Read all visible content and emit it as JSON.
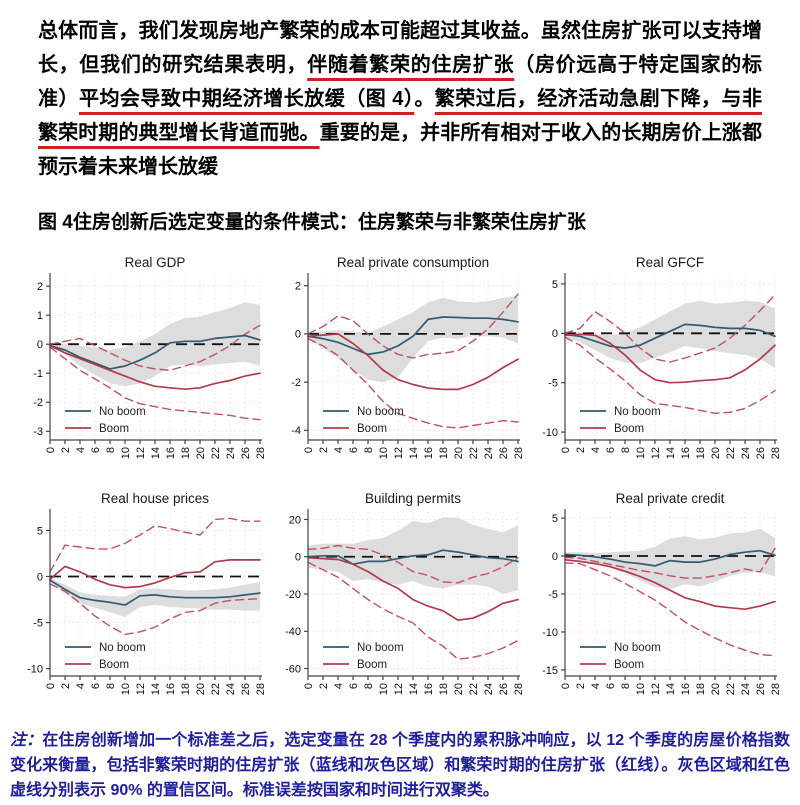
{
  "paragraph": {
    "segments": [
      {
        "text": "总体而言，我们发现房地产繁荣的成本可能超过其收益。虽然住房扩张可以支持增长，但我们的研究结果表明，",
        "underline": false
      },
      {
        "text": "伴随着繁荣的住房扩张",
        "underline": true
      },
      {
        "text": "（房价远高于特定国家的标准）",
        "underline": false
      },
      {
        "text": "平均会导致中期经济增长放缓（图 4）",
        "underline": true
      },
      {
        "text": "。",
        "underline": false
      },
      {
        "text": "繁荣过后，经济活动急剧下降，与非繁荣时期的典型增长背道而驰。",
        "underline": true
      },
      {
        "text": "重要的是，并非所有相对于收入的长期房价上涨都预示着未来增长放缓",
        "underline": false
      }
    ]
  },
  "figure_caption": {
    "prefix": "图 4",
    "text": "住房创新后选定变量的条件模式：住房繁荣与非繁荣住房扩张"
  },
  "legend": {
    "no_boom": "No boom",
    "boom": "Boom"
  },
  "colors": {
    "no_boom": "#315a74",
    "boom": "#b23b4b",
    "boom_ci": "#c05064",
    "band": "#dbdbdb",
    "zero_line": "#111111",
    "grid": "#f1e2e2",
    "axis": "#444444",
    "tick_text": "#111111",
    "underline": "#cc2222",
    "note_text": "#1f1f9c"
  },
  "chart_data": [
    {
      "type": "line",
      "title": "Real GDP",
      "x": [
        0,
        2,
        4,
        6,
        8,
        10,
        12,
        14,
        16,
        18,
        20,
        22,
        24,
        26,
        28
      ],
      "ylim": [
        -3.3,
        2.35
      ],
      "yticks": [
        2,
        1,
        0,
        -1,
        -2,
        -3
      ],
      "series": [
        {
          "name": "No boom",
          "style": "solid",
          "color_key": "no_boom",
          "values": [
            -0.05,
            -0.2,
            -0.45,
            -0.65,
            -0.85,
            -0.75,
            -0.55,
            -0.3,
            0.05,
            0.1,
            0.1,
            0.2,
            0.25,
            0.3,
            0.15
          ]
        },
        {
          "name": "Boom",
          "style": "solid",
          "color_key": "boom",
          "values": [
            -0.05,
            -0.3,
            -0.5,
            -0.7,
            -0.9,
            -1.1,
            -1.3,
            -1.45,
            -1.5,
            -1.55,
            -1.5,
            -1.35,
            -1.25,
            -1.1,
            -1.0
          ]
        },
        {
          "name": "Boom 90% CI upper",
          "style": "dashed",
          "color_key": "boom_ci",
          "values": [
            0,
            0.1,
            0.2,
            -0.05,
            -0.3,
            -0.55,
            -0.75,
            -0.85,
            -0.9,
            -0.75,
            -0.6,
            -0.35,
            -0.05,
            0.35,
            0.65
          ]
        },
        {
          "name": "Boom 90% CI lower",
          "style": "dashed",
          "color_key": "boom_ci",
          "values": [
            -0.1,
            -0.5,
            -0.9,
            -1.2,
            -1.5,
            -1.85,
            -2.05,
            -2.15,
            -2.25,
            -2.3,
            -2.35,
            -2.4,
            -2.45,
            -2.55,
            -2.6
          ]
        }
      ],
      "band": {
        "name": "No boom 90% CI",
        "upper": [
          0.05,
          0,
          -0.05,
          -0.1,
          -0.2,
          -0.1,
          0.1,
          0.35,
          0.7,
          0.9,
          0.95,
          1.1,
          1.25,
          1.45,
          1.35
        ],
        "lower": [
          -0.1,
          -0.35,
          -0.75,
          -1.05,
          -1.35,
          -1.45,
          -1.35,
          -1.1,
          -0.75,
          -0.7,
          -0.75,
          -0.7,
          -0.65,
          -0.6,
          -0.75
        ]
      }
    },
    {
      "type": "line",
      "title": "Real private consumption",
      "x": [
        0,
        2,
        4,
        6,
        8,
        10,
        12,
        14,
        16,
        18,
        20,
        22,
        24,
        26,
        28
      ],
      "ylim": [
        -4.4,
        2.4
      ],
      "yticks": [
        2,
        0,
        -2,
        -4
      ],
      "series": [
        {
          "name": "No boom",
          "style": "solid",
          "color_key": "no_boom",
          "values": [
            -0.1,
            -0.2,
            -0.35,
            -0.6,
            -0.85,
            -0.75,
            -0.5,
            -0.1,
            0.6,
            0.7,
            0.68,
            0.65,
            0.65,
            0.6,
            0.5
          ]
        },
        {
          "name": "Boom",
          "style": "solid",
          "color_key": "boom",
          "values": [
            -0.1,
            -0.05,
            0,
            -0.4,
            -0.9,
            -1.5,
            -1.9,
            -2.1,
            -2.25,
            -2.3,
            -2.3,
            -2.1,
            -1.8,
            -1.4,
            -1.05
          ]
        },
        {
          "name": "Boom 90% CI upper",
          "style": "dashed",
          "color_key": "boom_ci",
          "values": [
            0,
            0.3,
            0.75,
            0.55,
            0,
            -0.5,
            -0.85,
            -1.0,
            -0.85,
            -0.8,
            -0.7,
            -0.3,
            0.2,
            0.9,
            1.65
          ]
        },
        {
          "name": "Boom 90% CI lower",
          "style": "dashed",
          "color_key": "boom_ci",
          "values": [
            -0.2,
            -0.5,
            -0.9,
            -1.5,
            -2.1,
            -2.8,
            -3.3,
            -3.5,
            -3.7,
            -3.85,
            -3.9,
            -3.8,
            -3.7,
            -3.6,
            -3.65
          ]
        }
      ],
      "band": {
        "name": "No boom 90% CI",
        "upper": [
          0.05,
          0.1,
          0.15,
          0.1,
          0.05,
          0.3,
          0.6,
          0.9,
          1.3,
          1.5,
          1.35,
          1.3,
          1.35,
          1.5,
          1.55
        ],
        "lower": [
          -0.2,
          -0.6,
          -1.0,
          -1.5,
          -1.9,
          -2.0,
          -1.8,
          -1.0,
          -0.3,
          -0.15,
          -0.2,
          -0.1,
          -0.1,
          -0.15,
          -0.4
        ]
      }
    },
    {
      "type": "line",
      "title": "Real GFCF",
      "x": [
        0,
        2,
        4,
        6,
        8,
        10,
        12,
        14,
        16,
        18,
        20,
        22,
        24,
        26,
        28
      ],
      "ylim": [
        -10.8,
        5.8
      ],
      "yticks": [
        5,
        0,
        -5,
        -10
      ],
      "series": [
        {
          "name": "No boom",
          "style": "solid",
          "color_key": "no_boom",
          "values": [
            -0.1,
            -0.3,
            -0.8,
            -1.3,
            -1.5,
            -1.2,
            -0.5,
            0.2,
            0.9,
            0.8,
            0.6,
            0.5,
            0.5,
            0.3,
            -0.3
          ]
        },
        {
          "name": "Boom",
          "style": "solid",
          "color_key": "boom",
          "values": [
            -0.2,
            -0.1,
            -0.2,
            -1.0,
            -2.2,
            -3.7,
            -4.7,
            -5.0,
            -4.95,
            -4.8,
            -4.7,
            -4.5,
            -3.7,
            -2.6,
            -1.2
          ]
        },
        {
          "name": "Boom 90% CI upper",
          "style": "dashed",
          "color_key": "boom_ci",
          "values": [
            0,
            0.5,
            2.2,
            1.2,
            0,
            -1.5,
            -2.6,
            -2.9,
            -2.5,
            -2.0,
            -1.5,
            -0.5,
            0.8,
            2.3,
            3.9
          ]
        },
        {
          "name": "Boom 90% CI lower",
          "style": "dashed",
          "color_key": "boom_ci",
          "values": [
            -0.4,
            -1.2,
            -2.5,
            -3.6,
            -4.8,
            -6.2,
            -7.1,
            -7.3,
            -7.5,
            -7.8,
            -8.1,
            -8.0,
            -7.6,
            -6.8,
            -5.8
          ]
        }
      ],
      "band": {
        "name": "No boom 90% CI",
        "upper": [
          0.2,
          0.1,
          -0.1,
          -0.2,
          0,
          0.6,
          1.4,
          2.2,
          3.0,
          3.3,
          3.0,
          3.1,
          3.3,
          3.2,
          2.5
        ],
        "lower": [
          -0.4,
          -0.9,
          -1.7,
          -2.5,
          -3.0,
          -3.0,
          -2.5,
          -1.9,
          -1.3,
          -1.5,
          -1.8,
          -2.0,
          -2.2,
          -2.6,
          -3.5
        ]
      }
    },
    {
      "type": "line",
      "title": "Real house prices",
      "x": [
        0,
        2,
        4,
        6,
        8,
        10,
        12,
        14,
        16,
        18,
        20,
        22,
        24,
        26,
        28
      ],
      "ylim": [
        -10.8,
        7.0
      ],
      "yticks": [
        5,
        0,
        -5,
        -10
      ],
      "series": [
        {
          "name": "No boom",
          "style": "solid",
          "color_key": "no_boom",
          "values": [
            -0.4,
            -1.4,
            -2.3,
            -2.6,
            -2.8,
            -3.1,
            -2.1,
            -2.0,
            -2.2,
            -2.3,
            -2.3,
            -2.3,
            -2.2,
            -2.0,
            -1.8
          ]
        },
        {
          "name": "Boom",
          "style": "solid",
          "color_key": "boom",
          "values": [
            -0.3,
            1.1,
            0.5,
            -0.3,
            -0.9,
            -1.2,
            -1.1,
            -0.7,
            -0.1,
            0.4,
            0.5,
            1.6,
            1.8,
            1.8,
            1.8
          ]
        },
        {
          "name": "Boom 90% CI upper",
          "style": "dashed",
          "color_key": "boom_ci",
          "values": [
            0.5,
            3.4,
            3.2,
            3.0,
            3.0,
            3.6,
            4.5,
            5.5,
            5.2,
            4.8,
            4.5,
            6.2,
            6.3,
            6.0,
            6.0
          ]
        },
        {
          "name": "Boom 90% CI lower",
          "style": "dashed",
          "color_key": "boom_ci",
          "values": [
            -0.8,
            -1.6,
            -2.9,
            -4.3,
            -5.4,
            -6.3,
            -6.0,
            -5.5,
            -4.6,
            -3.9,
            -3.7,
            -2.9,
            -2.6,
            -2.5,
            -2.4
          ]
        }
      ],
      "band": {
        "name": "No boom 90% CI",
        "upper": [
          -0.2,
          -0.9,
          -1.7,
          -2.0,
          -2.1,
          -2.2,
          -1.4,
          -1.3,
          -1.4,
          -1.5,
          -1.5,
          -1.4,
          -1.2,
          -0.9,
          -0.6
        ],
        "lower": [
          -0.6,
          -1.9,
          -2.9,
          -3.4,
          -3.9,
          -4.4,
          -3.3,
          -3.1,
          -3.3,
          -3.4,
          -3.5,
          -3.6,
          -3.6,
          -3.7,
          -3.7
        ]
      }
    },
    {
      "type": "line",
      "title": "Building permits",
      "x": [
        0,
        2,
        4,
        6,
        8,
        10,
        12,
        14,
        16,
        18,
        20,
        22,
        24,
        26,
        28
      ],
      "ylim": [
        -64,
        24
      ],
      "yticks": [
        20,
        0,
        -20,
        -40,
        -60
      ],
      "series": [
        {
          "name": "No boom",
          "style": "solid",
          "color_key": "no_boom",
          "values": [
            0,
            0.5,
            0.5,
            -4,
            -2.5,
            -2.5,
            -1,
            0.5,
            1,
            3.5,
            2.5,
            1,
            -0.5,
            -1,
            -2.5
          ]
        },
        {
          "name": "Boom",
          "style": "solid",
          "color_key": "boom",
          "values": [
            -0.5,
            -1,
            -1.5,
            -4,
            -8,
            -13,
            -17,
            -23,
            -26.5,
            -29,
            -34,
            -33,
            -29.5,
            -25,
            -23
          ]
        },
        {
          "name": "Boom 90% CI upper",
          "style": "dashed",
          "color_key": "boom_ci",
          "values": [
            4,
            4.5,
            6,
            4.5,
            4,
            1,
            -3,
            -8,
            -10,
            -13.5,
            -14,
            -11,
            -9,
            -5.5,
            -0.5
          ]
        },
        {
          "name": "Boom 90% CI lower",
          "style": "dashed",
          "color_key": "boom_ci",
          "values": [
            -3,
            -7,
            -11,
            -17,
            -23,
            -28,
            -32,
            -35.5,
            -43,
            -48,
            -55,
            -54,
            -52,
            -49,
            -45
          ]
        }
      ],
      "band": {
        "name": "No boom 90% CI",
        "upper": [
          6,
          7,
          7,
          7,
          9,
          10,
          14,
          19,
          18,
          21,
          21,
          17,
          15,
          13,
          17
        ],
        "lower": [
          -6,
          -7,
          -8,
          -13,
          -12,
          -14,
          -15,
          -13,
          -16,
          -17,
          -15,
          -15,
          -16,
          -20,
          -18
        ]
      }
    },
    {
      "type": "line",
      "title": "Real private credit",
      "x": [
        0,
        2,
        4,
        6,
        8,
        10,
        12,
        14,
        16,
        18,
        20,
        22,
        24,
        26,
        28
      ],
      "ylim": [
        -15.8,
        5.8
      ],
      "yticks": [
        5,
        0,
        -5,
        -10,
        -15
      ],
      "series": [
        {
          "name": "No boom",
          "style": "solid",
          "color_key": "no_boom",
          "values": [
            0.2,
            0.1,
            -0.1,
            -0.4,
            -0.8,
            -1.0,
            -1.3,
            -0.6,
            -0.8,
            -0.8,
            -0.4,
            0.2,
            0.5,
            0.7,
            0.1
          ]
        },
        {
          "name": "Boom",
          "style": "solid",
          "color_key": "boom",
          "values": [
            -0.5,
            -0.7,
            -1.0,
            -1.4,
            -2.0,
            -2.7,
            -3.5,
            -4.5,
            -5.5,
            -6.0,
            -6.6,
            -6.8,
            -7.0,
            -6.6,
            -6.0
          ]
        },
        {
          "name": "Boom 90% CI upper",
          "style": "dashed",
          "color_key": "boom_ci",
          "values": [
            -0.2,
            -0.3,
            -0.7,
            -1.1,
            -1.5,
            -1.9,
            -2.2,
            -2.6,
            -2.9,
            -2.9,
            -2.6,
            -2.2,
            -1.7,
            -2.1,
            1.0
          ]
        },
        {
          "name": "Boom 90% CI lower",
          "style": "dashed",
          "color_key": "boom_ci",
          "values": [
            -0.9,
            -1.0,
            -1.8,
            -2.6,
            -3.6,
            -4.7,
            -5.8,
            -7.2,
            -8.7,
            -9.8,
            -10.8,
            -11.7,
            -12.4,
            -13.0,
            -13.1
          ]
        }
      ],
      "band": {
        "name": "No boom 90% CI",
        "upper": [
          0.5,
          0.5,
          0.4,
          0.5,
          0.6,
          0.7,
          1.2,
          2.3,
          2.6,
          2.2,
          2.4,
          3.0,
          3.1,
          3.6,
          2.4
        ],
        "lower": [
          -0.3,
          -0.5,
          -0.9,
          -1.5,
          -2.3,
          -3.2,
          -4.1,
          -4.4,
          -3.7,
          -4.0,
          -3.4,
          -2.6,
          -2.2,
          -2.1,
          -2.7
        ]
      }
    }
  ],
  "note": {
    "prefix": "注：",
    "text": "在住房创新增加一个标准差之后，选定变量在 28 个季度内的累积脉冲响应，以 12 个季度的房屋价格指数变化来衡量，包括非繁荣时期的住房扩张（蓝线和灰色区域）和繁荣时期的住房扩张（红线）。灰色区域和红色虚线分别表示 90% 的置信区间。标准误差按国家和时间进行双聚类。"
  }
}
